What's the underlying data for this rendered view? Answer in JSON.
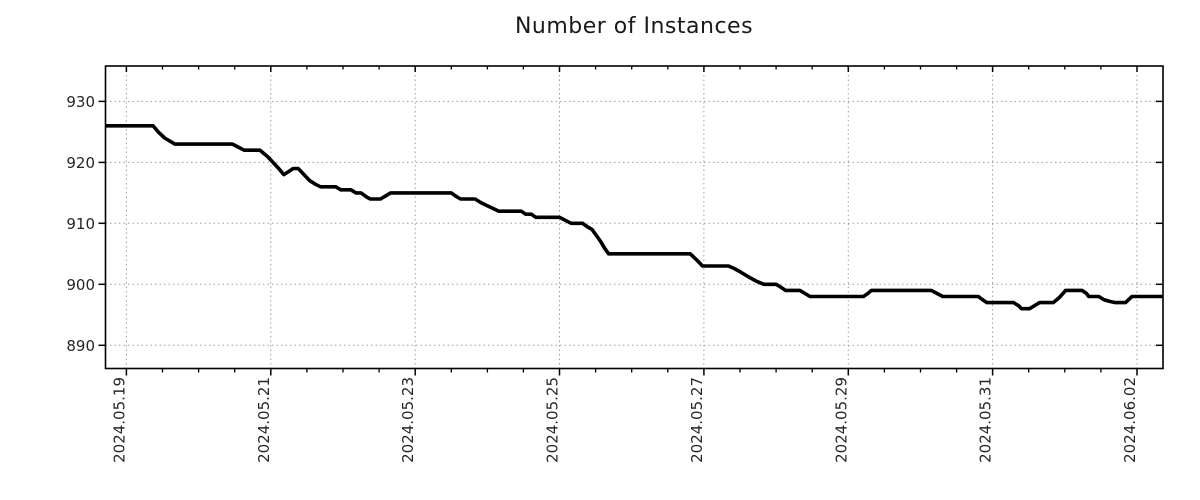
{
  "chart_data": {
    "type": "line",
    "title": "Number of Instances",
    "xlabel": "",
    "ylabel": "",
    "legend": "none",
    "grid": {
      "style": "dotted",
      "vertical_on": "major-x-ticks",
      "horizontal_on": "y-ticks"
    },
    "x_major_ticks": [
      {
        "day": 0,
        "label": "2024.05.19"
      },
      {
        "day": 2,
        "label": "2024.05.21"
      },
      {
        "day": 4,
        "label": "2024.05.23"
      },
      {
        "day": 6,
        "label": "2024.05.25"
      },
      {
        "day": 8,
        "label": "2024.05.27"
      },
      {
        "day": 10,
        "label": "2024.05.29"
      },
      {
        "day": 12,
        "label": "2024.05.31"
      },
      {
        "day": 14,
        "label": "2024.06.02"
      }
    ],
    "minor_tick_interval_days": 0.5,
    "y_ticks": [
      890,
      900,
      910,
      920,
      930
    ],
    "xlim_days": [
      -0.29,
      14.36
    ],
    "ylim": [
      886.2,
      935.8
    ],
    "colors": {
      "line": "#000000",
      "grid": "#9e9e9e",
      "axis": "#000000",
      "text": "#262626"
    },
    "series": [
      {
        "name": "instances",
        "points": [
          [
            -0.29,
            926
          ],
          [
            0.37,
            926
          ],
          [
            0.44,
            925
          ],
          [
            0.53,
            924
          ],
          [
            0.67,
            923
          ],
          [
            1.47,
            923
          ],
          [
            1.55,
            922.5
          ],
          [
            1.63,
            922
          ],
          [
            1.85,
            922
          ],
          [
            1.95,
            921
          ],
          [
            2.03,
            920
          ],
          [
            2.11,
            919
          ],
          [
            2.18,
            918
          ],
          [
            2.25,
            918.5
          ],
          [
            2.31,
            919
          ],
          [
            2.38,
            919
          ],
          [
            2.46,
            918
          ],
          [
            2.54,
            917
          ],
          [
            2.62,
            916.4
          ],
          [
            2.69,
            916
          ],
          [
            2.9,
            916
          ],
          [
            2.97,
            915.5
          ],
          [
            3.11,
            915.5
          ],
          [
            3.18,
            915
          ],
          [
            3.25,
            915
          ],
          [
            3.33,
            914.3
          ],
          [
            3.38,
            914
          ],
          [
            3.52,
            914
          ],
          [
            3.59,
            914.5
          ],
          [
            3.66,
            915
          ],
          [
            4.5,
            915
          ],
          [
            4.57,
            914.4
          ],
          [
            4.63,
            914
          ],
          [
            4.83,
            914
          ],
          [
            4.91,
            913.4
          ],
          [
            4.98,
            913
          ],
          [
            5.07,
            912.5
          ],
          [
            5.16,
            912
          ],
          [
            5.47,
            912
          ],
          [
            5.53,
            911.5
          ],
          [
            5.61,
            911.5
          ],
          [
            5.67,
            911
          ],
          [
            6.0,
            911
          ],
          [
            6.08,
            910.5
          ],
          [
            6.16,
            910
          ],
          [
            6.32,
            910
          ],
          [
            6.39,
            909.4
          ],
          [
            6.45,
            909
          ],
          [
            6.51,
            908
          ],
          [
            6.57,
            907
          ],
          [
            6.62,
            906
          ],
          [
            6.68,
            905
          ],
          [
            7.81,
            905
          ],
          [
            7.9,
            904
          ],
          [
            7.98,
            903
          ],
          [
            8.34,
            903
          ],
          [
            8.42,
            902.6
          ],
          [
            8.51,
            902
          ],
          [
            8.62,
            901.2
          ],
          [
            8.73,
            900.5
          ],
          [
            8.83,
            900
          ],
          [
            9.0,
            900
          ],
          [
            9.07,
            899.5
          ],
          [
            9.13,
            899
          ],
          [
            9.33,
            899
          ],
          [
            9.4,
            898.5
          ],
          [
            9.47,
            898
          ],
          [
            10.21,
            898
          ],
          [
            10.27,
            898.5
          ],
          [
            10.32,
            899
          ],
          [
            11.15,
            899
          ],
          [
            11.23,
            898.5
          ],
          [
            11.31,
            898
          ],
          [
            11.8,
            898
          ],
          [
            11.87,
            897.4
          ],
          [
            11.92,
            897
          ],
          [
            12.29,
            897
          ],
          [
            12.36,
            896.5
          ],
          [
            12.4,
            896
          ],
          [
            12.51,
            896
          ],
          [
            12.58,
            896.5
          ],
          [
            12.65,
            897
          ],
          [
            12.84,
            897
          ],
          [
            12.92,
            897.8
          ],
          [
            13.01,
            899
          ],
          [
            13.24,
            899
          ],
          [
            13.3,
            898.5
          ],
          [
            13.33,
            898
          ],
          [
            13.47,
            898
          ],
          [
            13.54,
            897.5
          ],
          [
            13.62,
            897.2
          ],
          [
            13.7,
            897
          ],
          [
            13.84,
            897
          ],
          [
            13.93,
            898
          ],
          [
            14.36,
            898
          ]
        ]
      }
    ]
  }
}
